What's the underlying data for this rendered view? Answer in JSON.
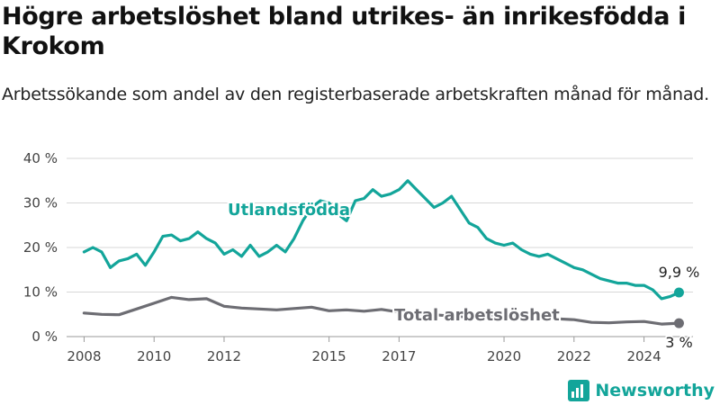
{
  "title": "Högre arbetslöshet bland utrikes- än inrikesfödda i Krokom",
  "subtitle": "Arbetssökande som andel av den registerbaserade arbetskraften månad för månad.",
  "brand": {
    "name": "Newsworthy",
    "logo_icon": "newsworthy-logo-icon"
  },
  "colors": {
    "foreign_born": "#13a59a",
    "total": "#6d6d73",
    "grid": "#d7d7d7"
  },
  "chart_data": {
    "type": "line",
    "title": "Högre arbetslöshet bland utrikes- än inrikesfödda i Krokom",
    "subtitle": "Arbetssökande som andel av den registerbaserade arbetskraften månad för månad.",
    "y_ticks": [
      "0 %",
      "10 %",
      "20 %",
      "30 %",
      "40 %"
    ],
    "y_tick_values": [
      0,
      10,
      20,
      30,
      40
    ],
    "x_ticks": [
      "2008",
      "2010",
      "2012",
      "2015",
      "2017",
      "2020",
      "2022",
      "2024"
    ],
    "x_tick_values": [
      "2008-01",
      "2010-01",
      "2012-01",
      "2015-01",
      "2017-01",
      "2020-01",
      "2022-01",
      "2024-01"
    ],
    "ylim": [
      0,
      40
    ],
    "grid": true,
    "series": [
      {
        "name": "Utlandsfödda",
        "end_label": "9,9 %",
        "points": [
          [
            "2008-01",
            19.0
          ],
          [
            "2008-04",
            20.0
          ],
          [
            "2008-07",
            19.0
          ],
          [
            "2008-10",
            15.5
          ],
          [
            "2009-01",
            17.0
          ],
          [
            "2009-04",
            17.5
          ],
          [
            "2009-07",
            18.5
          ],
          [
            "2009-10",
            16.0
          ],
          [
            "2010-01",
            19.0
          ],
          [
            "2010-04",
            22.5
          ],
          [
            "2010-07",
            22.8
          ],
          [
            "2010-10",
            21.5
          ],
          [
            "2011-01",
            22.0
          ],
          [
            "2011-04",
            23.5
          ],
          [
            "2011-07",
            22.0
          ],
          [
            "2011-10",
            21.0
          ],
          [
            "2012-01",
            18.5
          ],
          [
            "2012-04",
            19.5
          ],
          [
            "2012-07",
            18.0
          ],
          [
            "2012-10",
            20.5
          ],
          [
            "2013-01",
            18.0
          ],
          [
            "2013-04",
            19.0
          ],
          [
            "2013-07",
            20.5
          ],
          [
            "2013-10",
            19.0
          ],
          [
            "2014-01",
            22.0
          ],
          [
            "2014-04",
            26.0
          ],
          [
            "2014-07",
            29.0
          ],
          [
            "2014-10",
            30.5
          ],
          [
            "2015-01",
            30.0
          ],
          [
            "2015-04",
            27.5
          ],
          [
            "2015-07",
            26.0
          ],
          [
            "2015-10",
            30.5
          ],
          [
            "2016-01",
            31.0
          ],
          [
            "2016-04",
            33.0
          ],
          [
            "2016-07",
            31.5
          ],
          [
            "2016-10",
            32.0
          ],
          [
            "2017-01",
            33.0
          ],
          [
            "2017-04",
            35.0
          ],
          [
            "2017-07",
            33.0
          ],
          [
            "2017-10",
            31.0
          ],
          [
            "2018-01",
            29.0
          ],
          [
            "2018-04",
            30.0
          ],
          [
            "2018-07",
            31.5
          ],
          [
            "2018-10",
            28.5
          ],
          [
            "2019-01",
            25.5
          ],
          [
            "2019-04",
            24.5
          ],
          [
            "2019-07",
            22.0
          ],
          [
            "2019-10",
            21.0
          ],
          [
            "2020-01",
            20.5
          ],
          [
            "2020-04",
            21.0
          ],
          [
            "2020-07",
            19.5
          ],
          [
            "2020-10",
            18.5
          ],
          [
            "2021-01",
            18.0
          ],
          [
            "2021-04",
            18.5
          ],
          [
            "2021-07",
            17.5
          ],
          [
            "2021-10",
            16.5
          ],
          [
            "2022-01",
            15.5
          ],
          [
            "2022-04",
            15.0
          ],
          [
            "2022-07",
            14.0
          ],
          [
            "2022-10",
            13.0
          ],
          [
            "2023-01",
            12.5
          ],
          [
            "2023-04",
            12.0
          ],
          [
            "2023-07",
            12.0
          ],
          [
            "2023-10",
            11.5
          ],
          [
            "2024-01",
            11.5
          ],
          [
            "2024-04",
            10.5
          ],
          [
            "2024-07",
            8.5
          ],
          [
            "2024-10",
            9.0
          ],
          [
            "2025-01",
            9.9
          ]
        ]
      },
      {
        "name": "Total arbetslöshet",
        "end_label": "3 %",
        "points": [
          [
            "2008-01",
            5.3
          ],
          [
            "2008-07",
            5.0
          ],
          [
            "2009-01",
            4.9
          ],
          [
            "2009-07",
            6.2
          ],
          [
            "2010-01",
            7.5
          ],
          [
            "2010-07",
            8.8
          ],
          [
            "2011-01",
            8.3
          ],
          [
            "2011-07",
            8.5
          ],
          [
            "2012-01",
            6.8
          ],
          [
            "2012-07",
            6.4
          ],
          [
            "2013-01",
            6.2
          ],
          [
            "2013-07",
            6.0
          ],
          [
            "2014-01",
            6.3
          ],
          [
            "2014-07",
            6.6
          ],
          [
            "2015-01",
            5.8
          ],
          [
            "2015-07",
            6.0
          ],
          [
            "2016-01",
            5.7
          ],
          [
            "2016-07",
            6.1
          ],
          [
            "2017-01",
            5.5
          ],
          [
            "2017-07",
            5.2
          ],
          [
            "2018-01",
            4.9
          ],
          [
            "2018-07",
            4.6
          ],
          [
            "2019-01",
            4.4
          ],
          [
            "2019-07",
            4.5
          ],
          [
            "2020-01",
            4.7
          ],
          [
            "2020-07",
            4.8
          ],
          [
            "2021-01",
            4.3
          ],
          [
            "2021-07",
            4.0
          ],
          [
            "2022-01",
            3.8
          ],
          [
            "2022-07",
            3.2
          ],
          [
            "2023-01",
            3.1
          ],
          [
            "2023-07",
            3.3
          ],
          [
            "2024-01",
            3.4
          ],
          [
            "2024-07",
            2.8
          ],
          [
            "2025-01",
            3.0
          ]
        ]
      }
    ]
  }
}
